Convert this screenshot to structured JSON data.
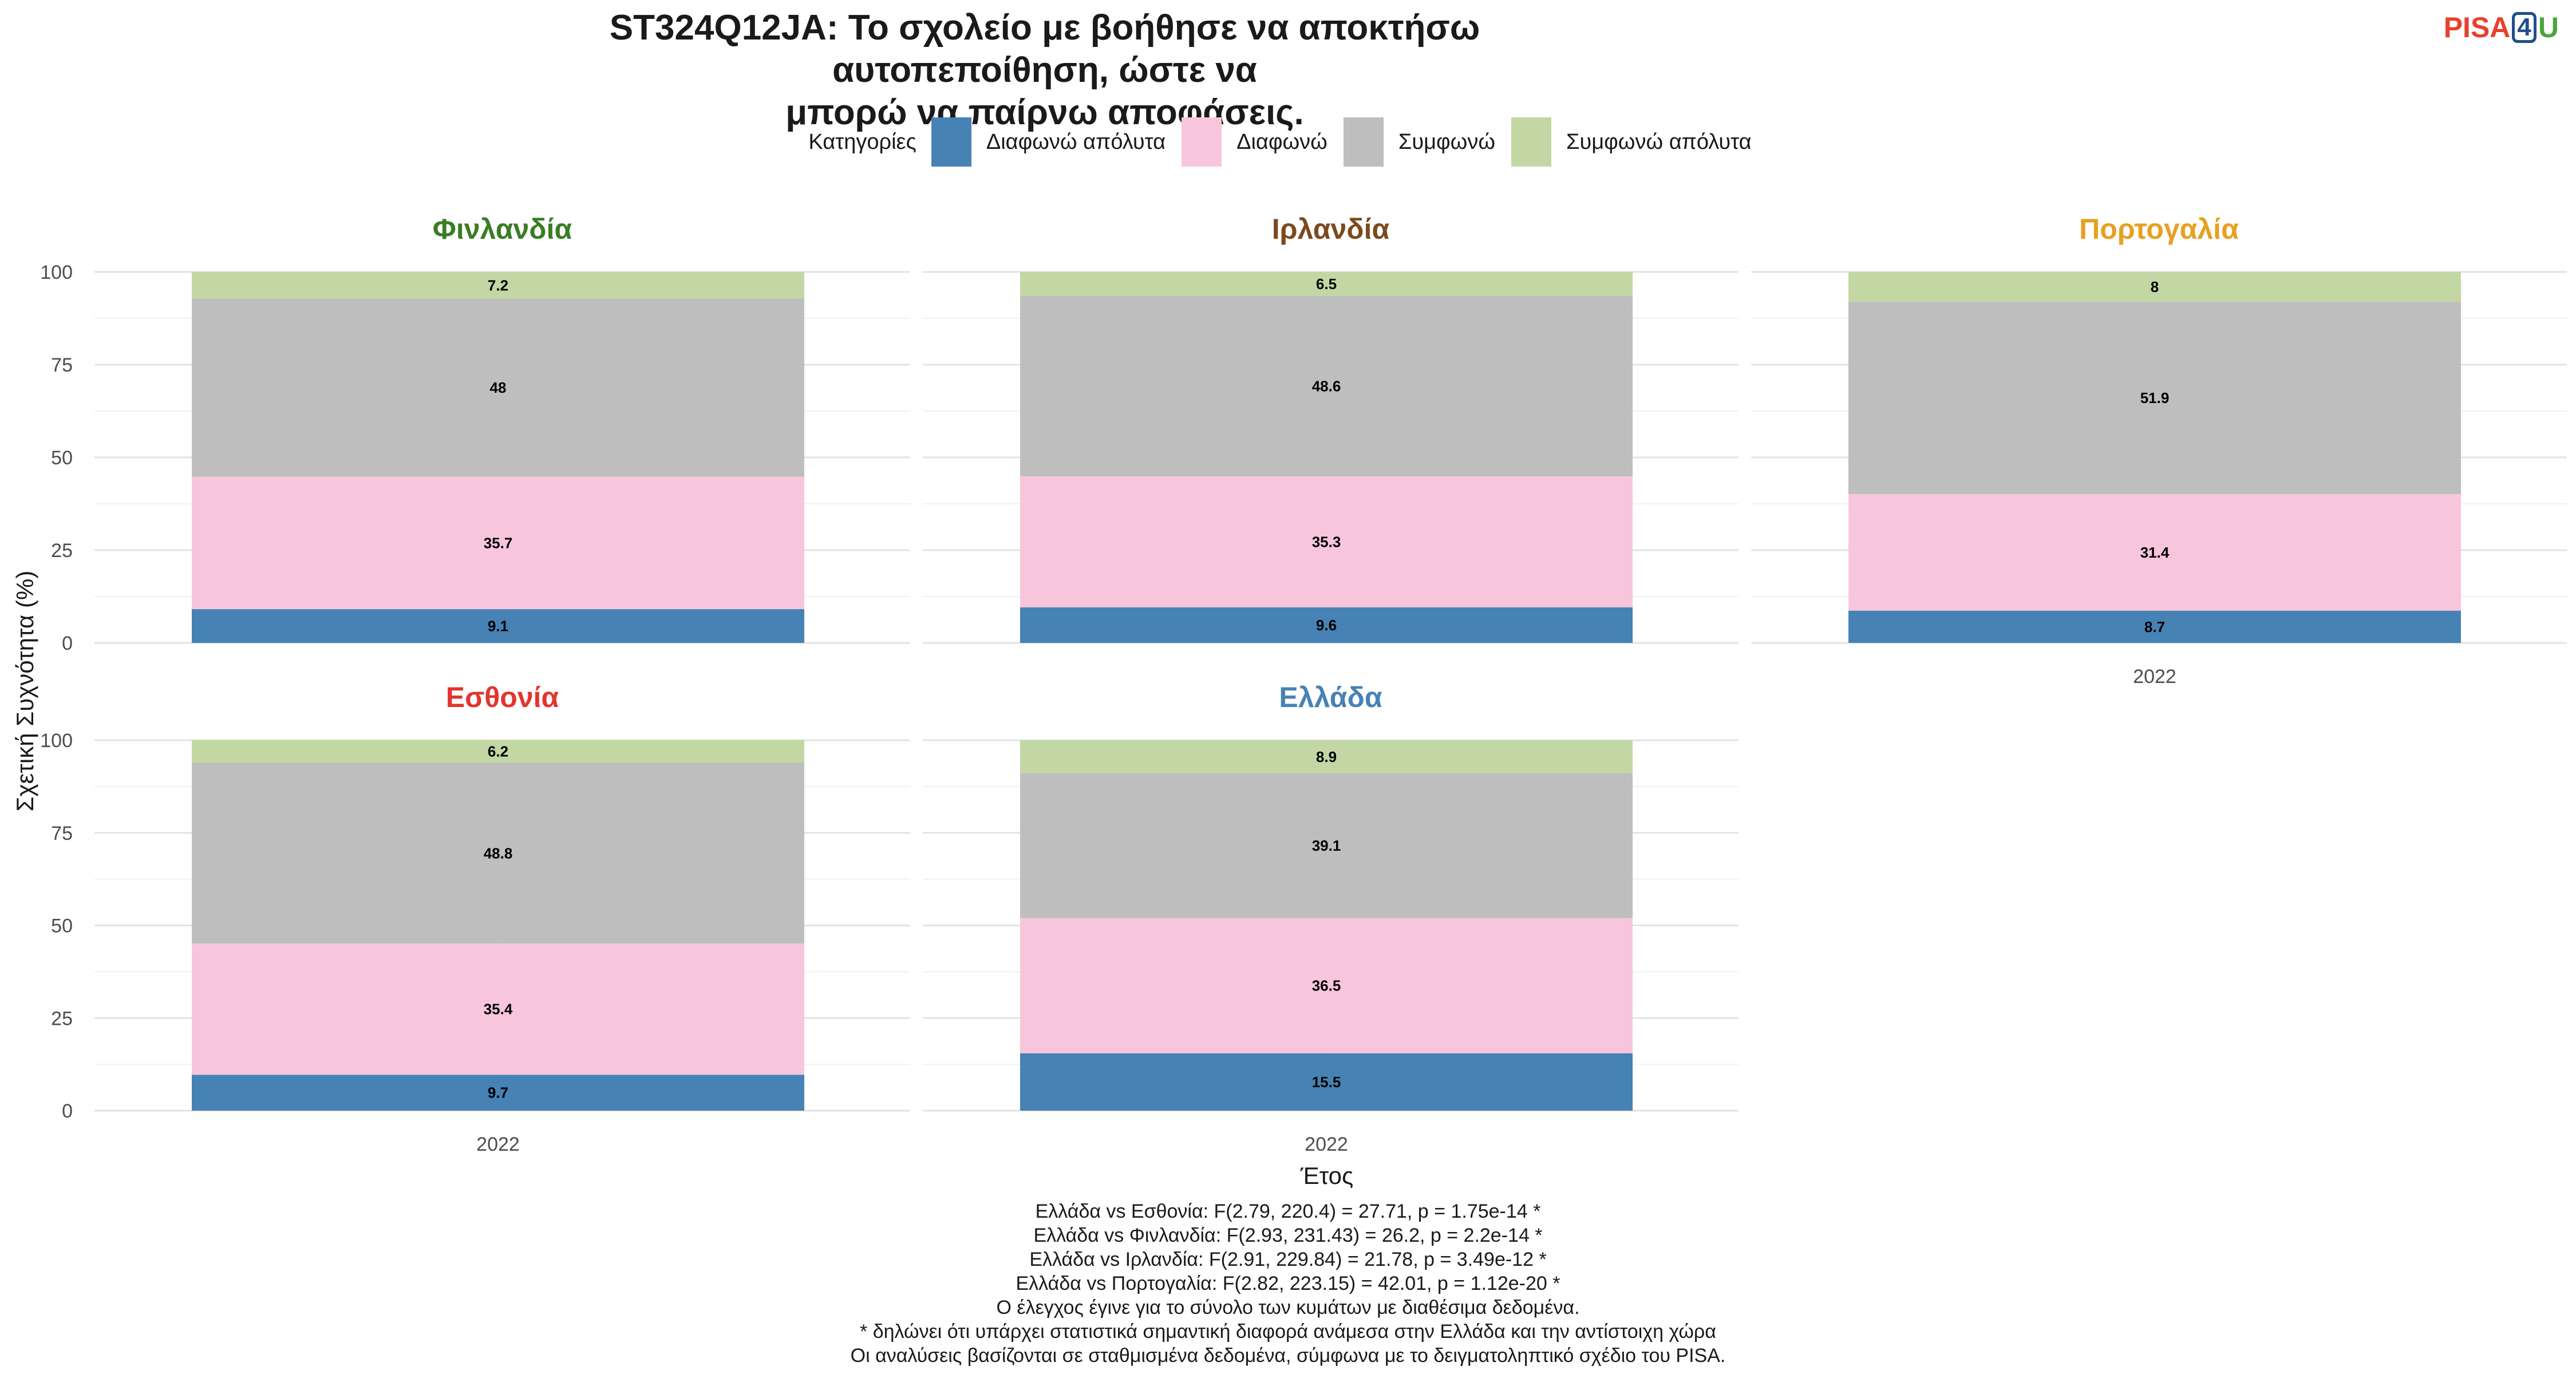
{
  "chart_data": {
    "type": "bar",
    "stacked": true,
    "title": "ST324Q12JA: Το σχολείο με βοήθησε να αποκτήσω αυτοπεποίθηση, ώστε να μπορώ να παίρνω αποφάσεις.",
    "title_lines": [
      "ST324Q12JA: Το σχολείο με βοήθησε να αποκτήσω αυτοπεποίθηση, ώστε να",
      "μπορώ να παίρνω αποφάσεις."
    ],
    "xlabel": "Έτος",
    "ylabel": "Σχετική Συχνότητα (%)",
    "ylim": [
      0,
      100
    ],
    "yticks": [
      0,
      25,
      50,
      75,
      100
    ],
    "grid": true,
    "legend": {
      "position": "top",
      "title": "Κατηγορίες",
      "entries": [
        {
          "name": "Διαφωνώ απόλυτα",
          "color": "#4682B4"
        },
        {
          "name": "Διαφωνώ",
          "color": "#F7C6DC"
        },
        {
          "name": "Συμφωνώ",
          "color": "#BEBEBE"
        },
        {
          "name": "Συμφωνώ απόλυτα",
          "color": "#C3D7A4"
        }
      ]
    },
    "panels": [
      {
        "country": "Φινλανδία",
        "title_color": "#3A7D22",
        "categories": [
          "2022"
        ],
        "values": [
          9.1,
          35.7,
          48,
          7.2
        ],
        "show_x_axis": false
      },
      {
        "country": "Ιρλανδία",
        "title_color": "#7B4A1E",
        "categories": [
          "2022"
        ],
        "values": [
          9.6,
          35.3,
          48.6,
          6.5
        ],
        "show_x_axis": false
      },
      {
        "country": "Πορτογαλία",
        "title_color": "#E8A020",
        "categories": [
          "2022"
        ],
        "values": [
          8.7,
          31.4,
          51.9,
          8
        ],
        "show_x_axis": true
      },
      {
        "country": "Εσθονία",
        "title_color": "#E3342F",
        "categories": [
          "2022"
        ],
        "values": [
          9.7,
          35.4,
          48.8,
          6.2
        ],
        "show_x_axis": true
      },
      {
        "country": "Ελλάδα",
        "title_color": "#4682B4",
        "categories": [
          "2022"
        ],
        "values": [
          15.5,
          36.5,
          39.1,
          8.9
        ],
        "show_x_axis": true
      }
    ]
  },
  "logo": {
    "part1": "PISA",
    "part2": "4",
    "part3": "U"
  },
  "footnotes": [
    "Ελλάδα vs Εσθονία: F(2.79, 220.4) = 27.71, p = 1.75e-14 *",
    "Ελλάδα vs Φινλανδία: F(2.93, 231.43) = 26.2, p = 2.2e-14 *",
    "Ελλάδα vs Ιρλανδία: F(2.91, 229.84) = 21.78, p = 3.49e-12 *",
    "Ελλάδα vs Πορτογαλία: F(2.82, 223.15) = 42.01, p = 1.12e-20 *",
    "Ο έλεγχος έγινε για το σύνολο των κυμάτων με διαθέσιμα δεδομένα.",
    "* δηλώνει ότι υπάρχει στατιστικά σημαντική διαφορά ανάμεσα στην Ελλάδα και την αντίστοιχη χώρα",
    "Οι αναλύσεις βασίζονται σε σταθμισμένα δεδομένα, σύμφωνα με το δειγματοληπτικό σχέδιο του PISA."
  ]
}
